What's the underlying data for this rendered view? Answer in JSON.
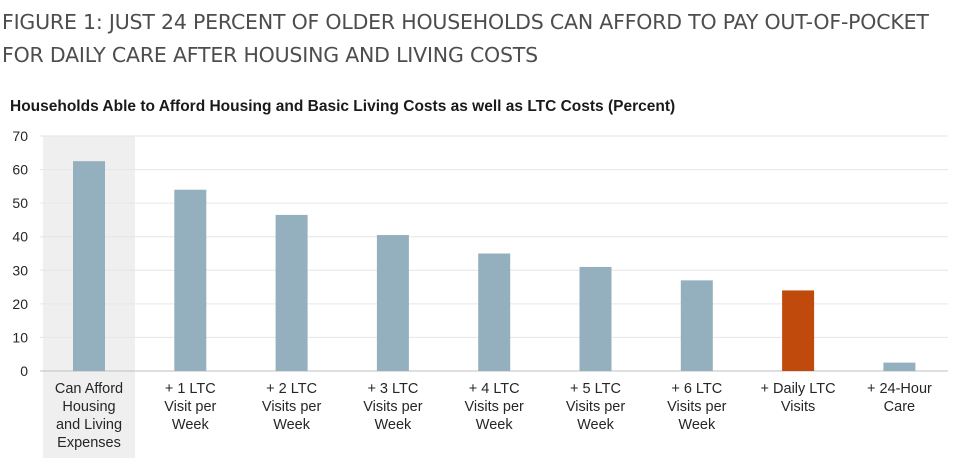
{
  "figure": {
    "title": "FIGURE 1: JUST 24 PERCENT OF OLDER HOUSEHOLDS CAN AFFORD TO PAY OUT-OF-POCKET FOR DAILY CARE AFTER HOUSING AND LIVING COSTS"
  },
  "colors": {
    "bar": "#94b0be",
    "highlight_bar": "#c04a0c",
    "first_column_background": "#efefef",
    "grid": "#e6e6e6",
    "baseline": "#bfbfbf"
  },
  "chart_data": {
    "type": "bar",
    "title": "Households Able to Afford Housing and Basic Living Costs as well as LTC Costs (Percent)",
    "xlabel": "",
    "ylabel": "",
    "ylim": [
      0,
      70
    ],
    "yticks": [
      0,
      10,
      20,
      30,
      40,
      50,
      60,
      70
    ],
    "grid": true,
    "legend": "none",
    "categories": [
      "Can Afford Housing and Living Expenses",
      "+ 1 LTC Visit per Week",
      "+ 2 LTC Visits per Week",
      "+ 3 LTC Visits per Week",
      "+ 4 LTC Visits per Week",
      "+ 5 LTC Visits per Week",
      "+ 6 LTC Visits per Week",
      "+ Daily LTC Visits",
      "+ 24-Hour Care"
    ],
    "category_lines": [
      [
        "Can Afford",
        "Housing",
        "and Living",
        "Expenses"
      ],
      [
        "+ 1 LTC",
        "Visit per",
        "Week"
      ],
      [
        "+ 2 LTC",
        "Visits per",
        "Week"
      ],
      [
        "+ 3 LTC",
        "Visits per",
        "Week"
      ],
      [
        "+ 4 LTC",
        "Visits per",
        "Week"
      ],
      [
        "+ 5 LTC",
        "Visits per",
        "Week"
      ],
      [
        "+ 6 LTC",
        "Visits per",
        "Week"
      ],
      [
        "+ Daily LTC",
        "Visits"
      ],
      [
        "+ 24-Hour",
        "Care"
      ]
    ],
    "values": [
      62.5,
      54,
      46.5,
      40.5,
      35,
      31,
      27,
      24,
      2.5
    ],
    "highlight_index": 7,
    "shaded_index": 0
  }
}
